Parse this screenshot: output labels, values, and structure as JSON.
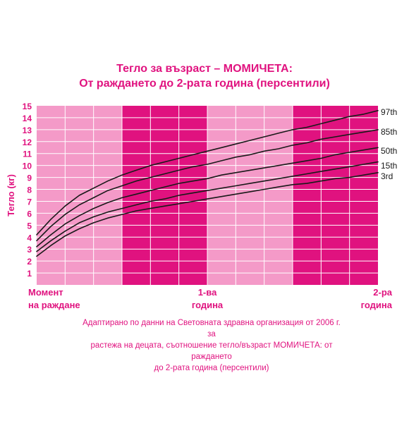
{
  "chart_data": {
    "type": "line",
    "title_line1": "Тегло за възраст – МОМИЧЕТА:",
    "title_line2": "От раждането до 2-рата година (персентили)",
    "ylabel": "Тегло (кг)",
    "ylim": [
      0,
      15
    ],
    "yticks": [
      1,
      2,
      3,
      4,
      5,
      6,
      7,
      8,
      9,
      10,
      11,
      12,
      13,
      14,
      15
    ],
    "xlim": [
      0,
      24
    ],
    "xticks": [
      {
        "x": 0,
        "line1": "Момент",
        "line2": "на раждане"
      },
      {
        "x": 12,
        "line1": "1-ва",
        "line2": "година"
      },
      {
        "x": 24,
        "line1": "2-ра",
        "line2": "година"
      }
    ],
    "grid": true,
    "bands": [
      {
        "from": 0,
        "to": 6,
        "color": "#f49ac8"
      },
      {
        "from": 6,
        "to": 12,
        "color": "#e0127f"
      },
      {
        "from": 12,
        "to": 18,
        "color": "#f49ac8"
      },
      {
        "from": 18,
        "to": 24,
        "color": "#e0127f"
      }
    ],
    "colors": {
      "accent": "#e0127f",
      "line": "#1a1a1a",
      "grid": "#ffffff"
    },
    "x": [
      0,
      1,
      2,
      3,
      4,
      5,
      6,
      7,
      8,
      9,
      10,
      11,
      12,
      13,
      14,
      15,
      16,
      17,
      18,
      19,
      20,
      21,
      22,
      23,
      24
    ],
    "series": [
      {
        "name": "97th",
        "values": [
          4.2,
          5.5,
          6.6,
          7.5,
          8.1,
          8.7,
          9.2,
          9.6,
          10.0,
          10.3,
          10.6,
          10.9,
          11.2,
          11.5,
          11.8,
          12.1,
          12.4,
          12.7,
          13.0,
          13.2,
          13.5,
          13.8,
          14.1,
          14.3,
          14.6
        ]
      },
      {
        "name": "85th",
        "values": [
          3.7,
          4.9,
          5.9,
          6.7,
          7.3,
          7.9,
          8.3,
          8.7,
          9.0,
          9.3,
          9.6,
          9.9,
          10.1,
          10.4,
          10.7,
          10.9,
          11.2,
          11.4,
          11.7,
          11.9,
          12.2,
          12.4,
          12.6,
          12.8,
          13.0
        ]
      },
      {
        "name": "50th",
        "values": [
          3.2,
          4.2,
          5.1,
          5.8,
          6.4,
          6.9,
          7.3,
          7.6,
          7.9,
          8.2,
          8.5,
          8.7,
          8.9,
          9.2,
          9.4,
          9.6,
          9.8,
          10.0,
          10.2,
          10.4,
          10.6,
          10.9,
          11.1,
          11.3,
          11.5
        ]
      },
      {
        "name": "15th",
        "values": [
          2.8,
          3.7,
          4.5,
          5.2,
          5.7,
          6.1,
          6.4,
          6.7,
          7.0,
          7.2,
          7.5,
          7.7,
          7.9,
          8.1,
          8.3,
          8.5,
          8.7,
          8.9,
          9.1,
          9.3,
          9.5,
          9.7,
          9.9,
          10.1,
          10.3
        ]
      },
      {
        "name": "3rd",
        "values": [
          2.4,
          3.3,
          4.1,
          4.7,
          5.2,
          5.6,
          5.9,
          6.2,
          6.4,
          6.6,
          6.8,
          7.0,
          7.2,
          7.4,
          7.6,
          7.8,
          8.0,
          8.2,
          8.4,
          8.5,
          8.7,
          8.9,
          9.0,
          9.2,
          9.4
        ]
      }
    ],
    "caption_line1": "Адаптирано по данни на Световната здравна организация от 2006 г. за",
    "caption_line2": "растежа на децата, съотношение тегло/възраст МОМИЧЕТА: от раждането",
    "caption_line3": "до 2-рата година (персентили)"
  }
}
